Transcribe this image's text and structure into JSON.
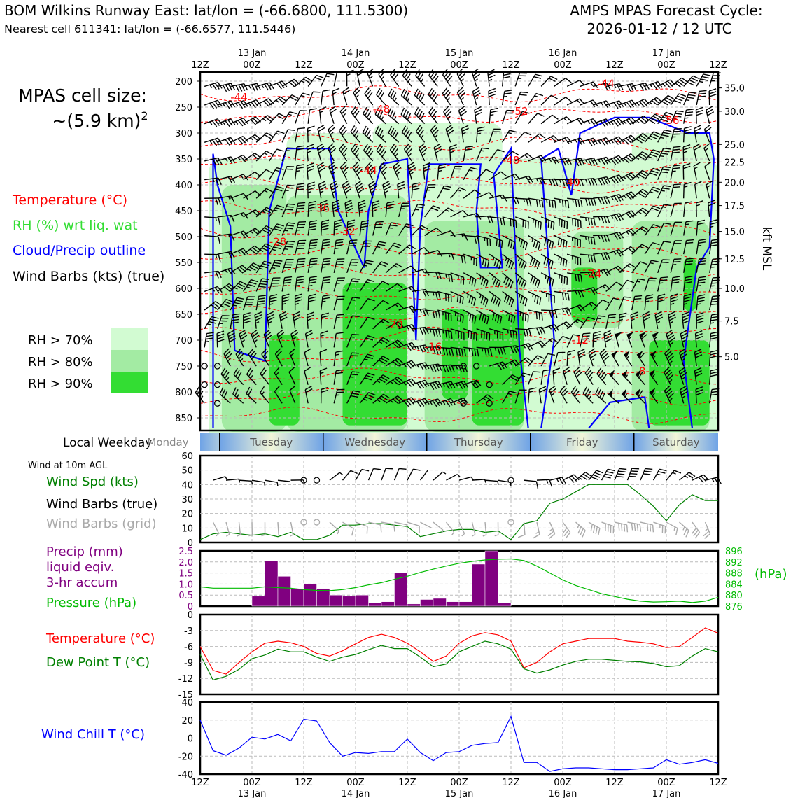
{
  "header": {
    "title_left": "BOM Wilkins Runway East: lat/lon = (-66.6800, 111.5300)",
    "subtitle_left": "Nearest cell 611341: lat/lon = (-66.6577, 111.5446)",
    "title_right_1": "AMPS MPAS Forecast Cycle:",
    "title_right_2": "2026-01-12 / 12 UTC"
  },
  "colors": {
    "temperature": "#ff0000",
    "rh": "#33dd33",
    "cloud_outline": "#0000ff",
    "wind_barb": "#000000",
    "wind_barb_grid": "#aaaaaa",
    "wind_speed": "#008000",
    "precip": "#800080",
    "pressure": "#00bb00",
    "dewpoint": "#008000",
    "windchill": "#0000ff",
    "rh70": "#d2fbd2",
    "rh80": "#a3eba3",
    "rh90": "#33dd33"
  },
  "time_axis": {
    "top_labels": [
      {
        "t": 0,
        "hh": "12Z",
        "date": ""
      },
      {
        "t": 12,
        "hh": "00Z",
        "date": "13 Jan"
      },
      {
        "t": 24,
        "hh": "12Z",
        "date": ""
      },
      {
        "t": 36,
        "hh": "00Z",
        "date": "14 Jan"
      },
      {
        "t": 48,
        "hh": "12Z",
        "date": ""
      },
      {
        "t": 60,
        "hh": "00Z",
        "date": "15 Jan"
      },
      {
        "t": 72,
        "hh": "12Z",
        "date": ""
      },
      {
        "t": 84,
        "hh": "00Z",
        "date": "16 Jan"
      },
      {
        "t": 96,
        "hh": "12Z",
        "date": ""
      },
      {
        "t": 108,
        "hh": "00Z",
        "date": "17 Jan"
      },
      {
        "t": 120,
        "hh": "12Z",
        "date": ""
      }
    ]
  },
  "cross_section": {
    "pressure_ticks": [
      "200",
      "250",
      "300",
      "350",
      "400",
      "450",
      "500",
      "550",
      "600",
      "650",
      "700",
      "750",
      "800",
      "850"
    ],
    "kft_ticks": [
      {
        "p": 213,
        "label": "35.0"
      },
      {
        "p": 258,
        "label": "30.0"
      },
      {
        "p": 322,
        "label": "25.0"
      },
      {
        "p": 356,
        "label": "22.5"
      },
      {
        "p": 395,
        "label": "20.0"
      },
      {
        "p": 440,
        "label": "17.5"
      },
      {
        "p": 490,
        "label": "15.0"
      },
      {
        "p": 543,
        "label": "12.5"
      },
      {
        "p": 600,
        "label": "10.0"
      },
      {
        "p": 663,
        "label": "7.5"
      },
      {
        "p": 732,
        "label": "5.0"
      }
    ],
    "kft_axis_label": "kft MSL",
    "temp_contour_labels": [
      {
        "t": 9,
        "p": 231,
        "label": "-44"
      },
      {
        "t": 42,
        "p": 254,
        "label": "-48"
      },
      {
        "t": 74,
        "p": 258,
        "label": "-52"
      },
      {
        "t": 94,
        "p": 205,
        "label": "-44"
      },
      {
        "t": 109,
        "p": 276,
        "label": "-56"
      },
      {
        "t": 72,
        "p": 353,
        "label": "-48"
      },
      {
        "t": 39,
        "p": 372,
        "label": "-44"
      },
      {
        "t": 86,
        "p": 395,
        "label": "-40"
      },
      {
        "t": 28,
        "p": 445,
        "label": "-36"
      },
      {
        "t": 34,
        "p": 490,
        "label": "-32"
      },
      {
        "t": 18,
        "p": 510,
        "label": "-28"
      },
      {
        "t": 91,
        "p": 572,
        "label": "-24"
      },
      {
        "t": 45,
        "p": 670,
        "label": "-20"
      },
      {
        "t": 54,
        "p": 713,
        "label": "-16"
      },
      {
        "t": 88,
        "p": 700,
        "label": "-12"
      },
      {
        "t": 102,
        "p": 760,
        "label": "-8"
      }
    ],
    "legend": {
      "temperature": "Temperature (°C)",
      "rh": "RH (%) wrt liq. wat",
      "cloud": "Cloud/Precip outline",
      "wind": "Wind Barbs (kts) (true)"
    },
    "rh_legend": [
      "RH > 70%",
      "RH > 80%",
      "RH > 90%"
    ],
    "cell_size_1": "MPAS cell size:",
    "cell_size_2": "~(5.9 km)",
    "cell_size_sup": "2"
  },
  "weekday": {
    "label": "Local Weekday",
    "days": [
      "Monday",
      "Tuesday",
      "Wednesday",
      "Thursday",
      "Friday",
      "Saturday"
    ]
  },
  "wind_panel": {
    "note": "Wind at 10m AGL",
    "legend_speed": "Wind Spd (kts)",
    "legend_barbs": "Wind Barbs (true)",
    "legend_grid": "Wind Barbs (grid)",
    "y_ticks": [
      "0",
      "10",
      "20",
      "30",
      "40",
      "50",
      "60"
    ],
    "ylim": [
      0,
      60
    ]
  },
  "precip_panel": {
    "legend_precip_1": "Precip (mm)",
    "legend_precip_2": "liquid eqiv.",
    "legend_precip_3": "3-hr accum",
    "legend_pressure": "Pressure (hPa)",
    "y_ticks": [
      "0",
      "0.5",
      "1.0",
      "1.5",
      "2.0",
      "2.5"
    ],
    "y2_ticks": [
      "876",
      "880",
      "884",
      "888",
      "892",
      "896"
    ],
    "y2_label": "(hPa)"
  },
  "temp_panel": {
    "legend_temp": "Temperature (°C)",
    "legend_dew": "Dew Point T (°C)",
    "y_ticks": [
      "0",
      "-3",
      "-6",
      "-9",
      "-12",
      "-15"
    ]
  },
  "chill_panel": {
    "legend": "Wind Chill T (°C)",
    "y_ticks": [
      "40",
      "20",
      "0",
      "-20",
      "-40"
    ]
  },
  "chart_data": [
    {
      "type": "line",
      "title": "Wind Spd (kts)",
      "x_unit": "hours since 2026-01-12 12Z",
      "x": [
        0,
        3,
        6,
        9,
        12,
        15,
        18,
        21,
        24,
        27,
        30,
        33,
        36,
        39,
        42,
        45,
        48,
        51,
        54,
        57,
        60,
        63,
        66,
        69,
        72,
        75,
        78,
        81,
        84,
        87,
        90,
        93,
        96,
        99,
        102,
        105,
        108,
        111,
        114,
        117,
        120
      ],
      "series": [
        {
          "name": "Wind Spd (kts)",
          "values": [
            2,
            6,
            7,
            6,
            5,
            6,
            4,
            7,
            2,
            2,
            5,
            12,
            12,
            13,
            13,
            12,
            11,
            4,
            6,
            8,
            9,
            9,
            7,
            8,
            2,
            13,
            15,
            27,
            30,
            35,
            40,
            40,
            40,
            40,
            33,
            25,
            15,
            26,
            33,
            29,
            29
          ]
        }
      ],
      "ylim": [
        0,
        60
      ]
    },
    {
      "type": "bar",
      "title": "Precip (mm) liquid eqiv. 3-hr accum",
      "x": [
        15,
        18,
        21,
        24,
        27,
        30,
        33,
        36,
        39,
        42,
        45,
        48,
        51,
        54,
        57,
        60,
        63,
        66,
        69,
        72,
        75
      ],
      "series": [
        {
          "name": "Precip (mm)",
          "values": [
            0.45,
            2.05,
            1.35,
            0.8,
            1.0,
            0.8,
            0.5,
            0.45,
            0.5,
            0.15,
            0.2,
            1.5,
            0.1,
            0.3,
            0.35,
            0.2,
            0.2,
            1.9,
            2.5,
            0.15,
            0.0
          ]
        }
      ],
      "ylim": [
        0,
        2.5
      ]
    },
    {
      "type": "line",
      "title": "Pressure (hPa)",
      "x": [
        0,
        3,
        6,
        9,
        12,
        15,
        18,
        21,
        24,
        27,
        30,
        33,
        36,
        39,
        42,
        45,
        48,
        51,
        54,
        57,
        60,
        63,
        66,
        69,
        72,
        75,
        78,
        81,
        84,
        87,
        90,
        93,
        96,
        99,
        102,
        105,
        108,
        111,
        114,
        117,
        120
      ],
      "series": [
        {
          "name": "Pressure (hPa)",
          "values": [
            883,
            882.5,
            882.5,
            882.5,
            882.5,
            883,
            882.7,
            882.5,
            882,
            881.7,
            881.6,
            882,
            882.7,
            883.7,
            884.5,
            885.7,
            886.8,
            888.2,
            889.4,
            890.5,
            891.5,
            892.2,
            892.7,
            893,
            893.1,
            892.5,
            890.5,
            888,
            885.5,
            883.5,
            882,
            880.5,
            879.5,
            878.5,
            877.8,
            877.5,
            877.6,
            877.8,
            877.3,
            877.8,
            879.2
          ]
        }
      ],
      "ylim": [
        876,
        896
      ]
    },
    {
      "type": "line",
      "title": "Temperature / Dew Point T (°C)",
      "x": [
        0,
        3,
        6,
        9,
        12,
        15,
        18,
        21,
        24,
        27,
        30,
        33,
        36,
        39,
        42,
        45,
        48,
        51,
        54,
        57,
        60,
        63,
        66,
        69,
        72,
        75,
        78,
        81,
        84,
        87,
        90,
        93,
        96,
        99,
        102,
        105,
        108,
        111,
        114,
        117,
        120
      ],
      "series": [
        {
          "name": "Temperature (°C)",
          "values": [
            -6,
            -10.5,
            -11.2,
            -9,
            -7,
            -5.4,
            -5,
            -5.3,
            -6,
            -7.3,
            -7.8,
            -6.8,
            -5.5,
            -4.3,
            -3.7,
            -4.3,
            -5.4,
            -7,
            -8.8,
            -7.8,
            -5.4,
            -4,
            -3.4,
            -3.8,
            -5,
            -10,
            -9,
            -7,
            -5.5,
            -5,
            -4.5,
            -4.5,
            -4.5,
            -5,
            -5.2,
            -5.5,
            -6.2,
            -6,
            -4.3,
            -2.5,
            -3.5
          ]
        },
        {
          "name": "Dew Point T (°C)",
          "values": [
            -7.5,
            -12.3,
            -11.6,
            -10.3,
            -8.3,
            -7.6,
            -6.5,
            -7,
            -7,
            -8,
            -8.8,
            -8,
            -7.5,
            -6.6,
            -5.8,
            -6.4,
            -6.4,
            -8,
            -9.8,
            -9.3,
            -7,
            -6,
            -5,
            -5.5,
            -6.5,
            -10.2,
            -11,
            -10.4,
            -9.5,
            -8.8,
            -8.4,
            -8.4,
            -8.6,
            -8.8,
            -8.9,
            -9.2,
            -9.8,
            -9.6,
            -7.8,
            -6.4,
            -7
          ]
        }
      ],
      "ylim": [
        -15,
        0
      ]
    },
    {
      "type": "line",
      "title": "Wind Chill T (°C)",
      "x": [
        0,
        3,
        6,
        9,
        12,
        15,
        18,
        21,
        24,
        27,
        30,
        33,
        36,
        39,
        42,
        45,
        48,
        51,
        54,
        57,
        60,
        63,
        66,
        69,
        72,
        75,
        78,
        81,
        84,
        87,
        90,
        93,
        96,
        99,
        102,
        105,
        108,
        111,
        114,
        117,
        120
      ],
      "series": [
        {
          "name": "Wind Chill T (°C)",
          "values": [
            20,
            -14,
            -19,
            -11,
            1,
            -1,
            4,
            -3,
            21,
            19,
            -5,
            -20,
            -16,
            -17,
            -15,
            -15,
            -1,
            -16,
            -25,
            -16,
            -15,
            -8,
            -6,
            -5,
            24,
            -27,
            -27,
            -37,
            -34,
            -33,
            -33,
            -34,
            -35,
            -35,
            -34,
            -33,
            -24,
            -29,
            -27,
            -24,
            -28
          ]
        }
      ],
      "ylim": [
        -40,
        40
      ]
    }
  ]
}
